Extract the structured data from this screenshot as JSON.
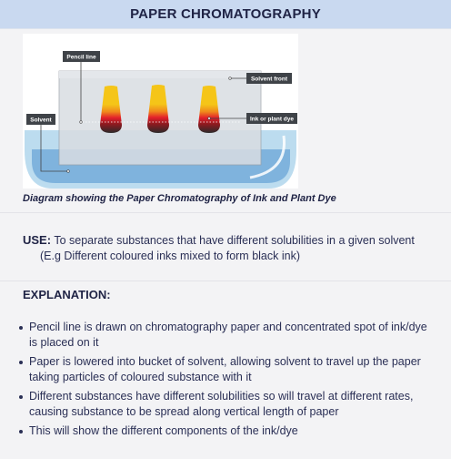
{
  "header": {
    "title": "PAPER CHROMATOGRAPHY"
  },
  "diagram": {
    "labels": {
      "pencil_line": "Pencil line",
      "solvent_front": "Solvent front",
      "solvent": "Solvent",
      "ink_or_plant_dye": "Ink or plant dye"
    },
    "colors": {
      "solvent": "#7fb3dd",
      "bucket": "#b9dcf0",
      "label_bg": "#3f4348",
      "dye_top": "#f5c518",
      "dye_mid": "#e3202b",
      "dye_bottom": "#2b2b2b"
    }
  },
  "caption": "Diagram showing the Paper Chromatography of Ink and Plant Dye",
  "use": {
    "label": "USE:",
    "text_line1": "To separate substances that have different solubilities in a given solvent",
    "text_line2": "(E.g Different coloured inks mixed to form black ink)"
  },
  "explanation": {
    "label": "EXPLANATION:"
  },
  "bullets": [
    "Pencil line is drawn on chromatography paper and concentrated spot of ink/dye is placed on it",
    "Paper is lowered into bucket of solvent, allowing solvent to travel up the paper taking particles of coloured substance with it",
    "Different substances have different solubilities so will travel at different rates, causing substance to be spread along vertical length of paper",
    "This will show the different components of the ink/dye"
  ]
}
